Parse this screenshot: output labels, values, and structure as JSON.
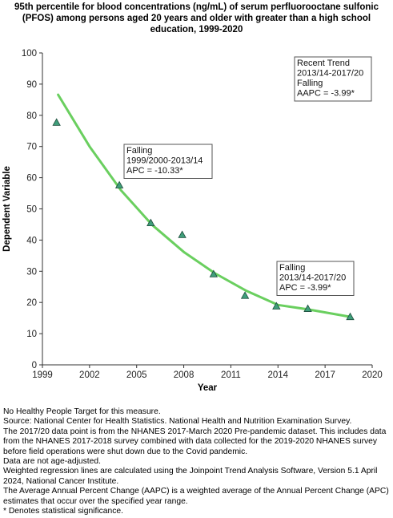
{
  "title": "95th percentile for blood concentrations (ng/mL) of serum perfluorooctane sulfonic (PFOS) among persons aged 20 years and older with greater than a high school education, 1999-2020",
  "chart_data": {
    "type": "scatter",
    "xlabel": "Year",
    "ylabel": "Dependent Variable",
    "xlim": [
      1999,
      2020
    ],
    "ylim": [
      0,
      100
    ],
    "x_ticks": [
      "1999",
      "2002",
      "2005",
      "2008",
      "2011",
      "2014",
      "2017",
      "2020"
    ],
    "y_ticks": [
      "0",
      "10",
      "20",
      "30",
      "40",
      "50",
      "60",
      "70",
      "80",
      "90",
      "100"
    ],
    "observed": {
      "x": [
        1999.9,
        2003.9,
        2005.9,
        2007.9,
        2009.9,
        2011.9,
        2013.9,
        2015.9,
        2018.6
      ],
      "y": [
        77.7,
        57.6,
        45.5,
        41.7,
        29.1,
        22.2,
        18.8,
        18.0,
        15.4
      ]
    },
    "trend": {
      "x": [
        2000.0,
        2002.0,
        2004.0,
        2006.0,
        2008.0,
        2010.0,
        2012.0,
        2014.0,
        2016.0,
        2018.6
      ],
      "y": [
        86.6,
        70.0,
        56.0,
        44.8,
        36.2,
        29.3,
        23.7,
        19.2,
        17.7,
        15.4
      ]
    },
    "colors": {
      "marker": "#3f9e7a",
      "marker_edge": "#1c4b3a",
      "line": "#6acf5f",
      "axis": "#333333"
    },
    "annotations": [
      {
        "lines": [
          "Recent Trend",
          "2013/14-2017/20",
          "Falling",
          "AAPC = -3.99*"
        ]
      },
      {
        "lines": [
          "Falling",
          "1999/2000-2013/14",
          "APC = -10.33*"
        ]
      },
      {
        "lines": [
          "Falling",
          "2013/14-2017/20",
          "APC = -3.99*"
        ]
      }
    ]
  },
  "footnotes": [
    "No Healthy People Target for this measure.",
    "Source: National Center for Health Statistics. National Health and Nutrition Examination Survey.",
    "The 2017/20 data point is from the NHANES 2017-March 2020 Pre-pandemic dataset. This includes data from the NHANES 2017-2018 survey combined with data collected for the 2019-2020 NHANES survey before field operations were shut down due to the Covid pandemic.",
    "Data are not age-adjusted.",
    "Weighted regression lines are calculated using the Joinpoint Trend Analysis Software, Version 5.1 April 2024, National Cancer Institute.",
    "The Average Annual Percent Change (AAPC) is a weighted average of the Annual Percent Change (APC) estimates that occur over the specified year range.",
    "* Denotes statistical significance."
  ]
}
